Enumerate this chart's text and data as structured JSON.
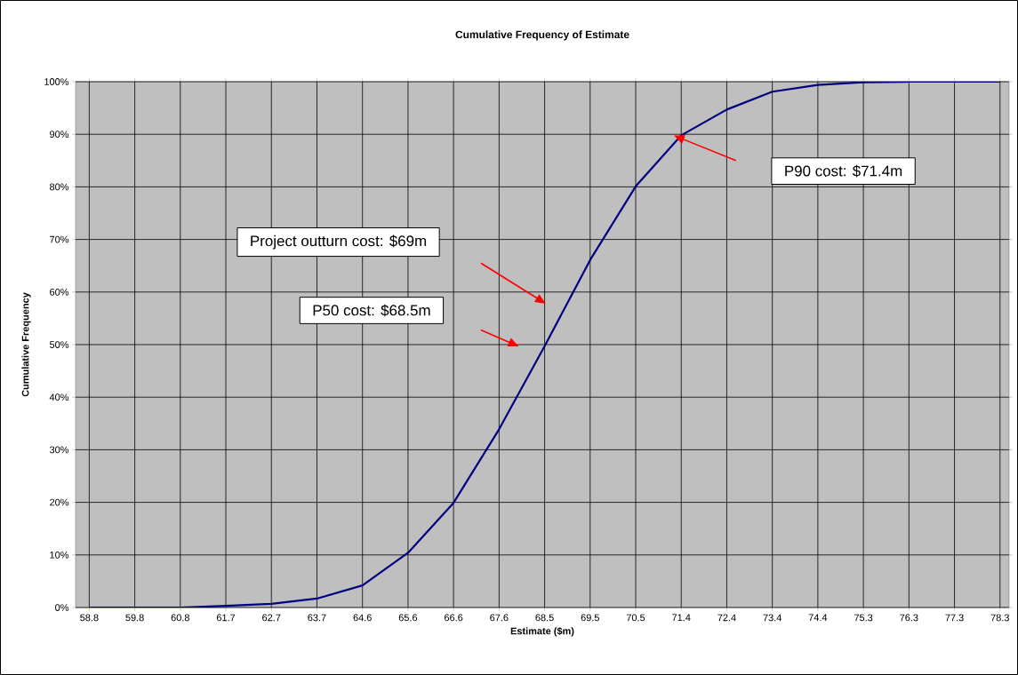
{
  "chart_data": {
    "type": "line",
    "title": "Cumulative Frequency of Estimate",
    "xlabel": "Estimate ($m)",
    "ylabel": "Cumulative Frequency",
    "categories": [
      "58.8",
      "59.8",
      "60.8",
      "61.7",
      "62.7",
      "63.7",
      "64.6",
      "65.6",
      "66.6",
      "67.6",
      "68.5",
      "69.5",
      "70.5",
      "71.4",
      "72.4",
      "73.4",
      "74.4",
      "75.3",
      "76.3",
      "77.3",
      "78.3"
    ],
    "series": [
      {
        "color": "#000080",
        "values": [
          0,
          0,
          0,
          0.3,
          0.7,
          1.7,
          4.2,
          10.4,
          19.9,
          33.9,
          49.7,
          66.1,
          80.1,
          89.8,
          94.7,
          98.1,
          99.4,
          99.9,
          100,
          100,
          100
        ]
      }
    ],
    "ylim": [
      0,
      100
    ],
    "yticks": [
      {
        "value": 0,
        "label": "0%"
      },
      {
        "value": 10,
        "label": "10%"
      },
      {
        "value": 20,
        "label": "20%"
      },
      {
        "value": 30,
        "label": "30%"
      },
      {
        "value": 40,
        "label": "40%"
      },
      {
        "value": 50,
        "label": "50%"
      },
      {
        "value": 60,
        "label": "60%"
      },
      {
        "value": 70,
        "label": "70%"
      },
      {
        "value": 80,
        "label": "80%"
      },
      {
        "value": 90,
        "label": "90%"
      },
      {
        "value": 100,
        "label": "100%"
      }
    ],
    "grid": true,
    "marker": "none",
    "line_style": "solid",
    "annotations": [
      "Project outturn cost: $69m",
      "P50 cost: $68.5m",
      "P90 cost: $71.4m"
    ]
  }
}
